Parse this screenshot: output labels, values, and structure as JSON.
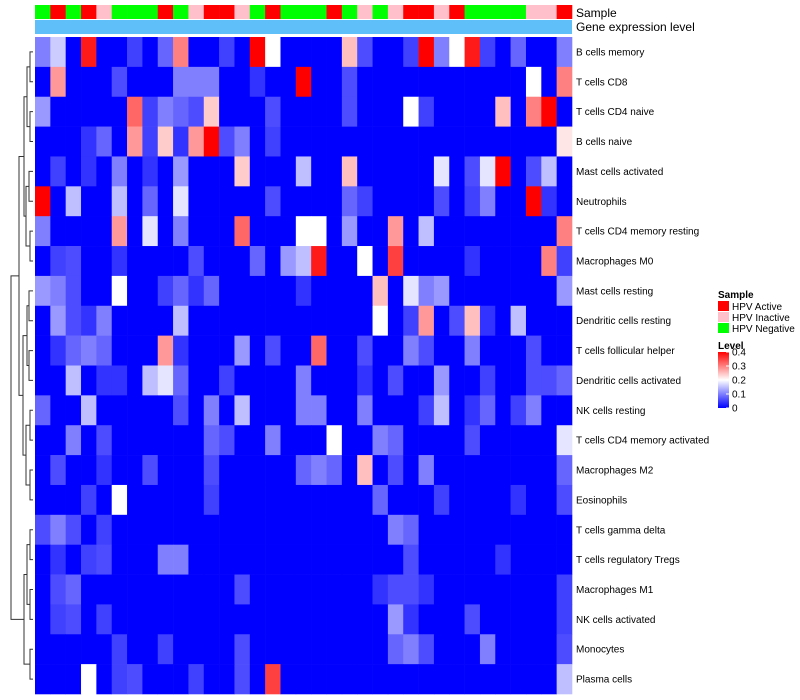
{
  "chart_data": {
    "type": "heatmap",
    "title": "",
    "annotation_labels": [
      "Sample",
      "Gene expression level"
    ],
    "rows": [
      "B cells memory",
      "T cells CD8",
      "T cells CD4 naive",
      "B cells naive",
      "Mast cells activated",
      "Neutrophils",
      "T cells CD4 memory resting",
      "Macrophages M0",
      "Mast cells resting",
      "Dendritic cells resting",
      "T cells follicular helper",
      "Dendritic cells activated",
      "NK cells resting",
      "T cells CD4 memory activated",
      "Macrophages M2",
      "Eosinophils",
      "T cells gamma delta",
      "T cells regulatory  Tregs",
      "Macrophages M1",
      "NK cells activated",
      "Monocytes",
      "Plasma cells"
    ],
    "sample_groups": [
      "HPV Negative",
      "HPV Active",
      "HPV Negative",
      "HPV Active",
      "HPV Inactive",
      "HPV Negative",
      "HPV Negative",
      "HPV Negative",
      "HPV Active",
      "HPV Negative",
      "HPV Inactive",
      "HPV Active",
      "HPV Active",
      "HPV Inactive",
      "HPV Negative",
      "HPV Active",
      "HPV Negative",
      "HPV Negative",
      "HPV Negative",
      "HPV Active",
      "HPV Negative",
      "HPV Inactive",
      "HPV Negative",
      "HPV Inactive",
      "HPV Active",
      "HPV Active",
      "HPV Inactive",
      "HPV Active",
      "HPV Negative",
      "HPV Negative",
      "HPV Negative",
      "HPV Negative",
      "HPV Inactive",
      "HPV Inactive",
      "HPV Active"
    ],
    "values": [
      [
        0.1,
        0.16,
        0.0,
        0.38,
        0.0,
        0.0,
        0.05,
        0.0,
        0.08,
        0.3,
        0.0,
        0.0,
        0.05,
        0.0,
        0.4,
        0.2,
        0.0,
        0.0,
        0.0,
        0.0,
        0.25,
        0.06,
        0.0,
        0.0,
        0.05,
        0.4,
        0.1,
        0.2,
        0.38,
        0.05,
        0.0,
        0.08,
        0.0,
        0.0,
        0.1
      ],
      [
        0.0,
        0.28,
        0.0,
        0.0,
        0.0,
        0.06,
        0.0,
        0.0,
        0.0,
        0.1,
        0.1,
        0.1,
        0.0,
        0.0,
        0.04,
        0.0,
        0.0,
        0.4,
        0.0,
        0.0,
        0.06,
        0.0,
        0.0,
        0.0,
        0.0,
        0.0,
        0.0,
        0.0,
        0.0,
        0.0,
        0.0,
        0.0,
        0.2,
        0.0,
        0.3
      ],
      [
        0.12,
        0.0,
        0.0,
        0.0,
        0.0,
        0.0,
        0.32,
        0.05,
        0.1,
        0.08,
        0.06,
        0.24,
        0.0,
        0.0,
        0.0,
        0.06,
        0.0,
        0.0,
        0.0,
        0.0,
        0.06,
        0.0,
        0.0,
        0.0,
        0.2,
        0.05,
        0.0,
        0.0,
        0.0,
        0.0,
        0.25,
        0.0,
        0.3,
        0.4,
        0.0
      ],
      [
        0.0,
        0.0,
        0.0,
        0.04,
        0.08,
        0.0,
        0.28,
        0.05,
        0.24,
        0.04,
        0.28,
        0.4,
        0.06,
        0.1,
        0.0,
        0.05,
        0.0,
        0.0,
        0.0,
        0.0,
        0.0,
        0.0,
        0.0,
        0.0,
        0.0,
        0.0,
        0.0,
        0.0,
        0.0,
        0.0,
        0.0,
        0.0,
        0.0,
        0.0,
        0.22
      ],
      [
        0.0,
        0.05,
        0.0,
        0.04,
        0.0,
        0.1,
        0.0,
        0.04,
        0.0,
        0.12,
        0.0,
        0.0,
        0.0,
        0.24,
        0.0,
        0.0,
        0.0,
        0.15,
        0.0,
        0.0,
        0.25,
        0.0,
        0.0,
        0.0,
        0.0,
        0.0,
        0.18,
        0.0,
        0.06,
        0.18,
        0.4,
        0.0,
        0.06,
        0.15,
        0.0
      ],
      [
        0.4,
        0.0,
        0.15,
        0.0,
        0.0,
        0.15,
        0.0,
        0.08,
        0.0,
        0.18,
        0.0,
        0.0,
        0.0,
        0.0,
        0.0,
        0.06,
        0.0,
        0.0,
        0.0,
        0.0,
        0.08,
        0.05,
        0.0,
        0.0,
        0.0,
        0.0,
        0.06,
        0.0,
        0.05,
        0.1,
        0.0,
        0.0,
        0.4,
        0.04,
        0.0
      ],
      [
        0.1,
        0.0,
        0.0,
        0.0,
        0.0,
        0.28,
        0.0,
        0.18,
        0.0,
        0.1,
        0.0,
        0.0,
        0.0,
        0.32,
        0.0,
        0.0,
        0.0,
        0.2,
        0.2,
        0.0,
        0.12,
        0.0,
        0.0,
        0.28,
        0.0,
        0.15,
        0.0,
        0.0,
        0.0,
        0.0,
        0.0,
        0.0,
        0.0,
        0.0,
        0.3
      ],
      [
        0.0,
        0.05,
        0.06,
        0.0,
        0.0,
        0.04,
        0.0,
        0.0,
        0.0,
        0.0,
        0.06,
        0.0,
        0.0,
        0.0,
        0.08,
        0.0,
        0.12,
        0.15,
        0.38,
        0.0,
        0.0,
        0.2,
        0.0,
        0.35,
        0.0,
        0.0,
        0.0,
        0.0,
        0.04,
        0.0,
        0.0,
        0.0,
        0.0,
        0.3,
        0.05
      ],
      [
        0.12,
        0.1,
        0.06,
        0.0,
        0.0,
        0.2,
        0.0,
        0.0,
        0.05,
        0.08,
        0.04,
        0.08,
        0.0,
        0.0,
        0.0,
        0.0,
        0.0,
        0.04,
        0.0,
        0.0,
        0.0,
        0.0,
        0.25,
        0.0,
        0.18,
        0.1,
        0.12,
        0.0,
        0.0,
        0.0,
        0.0,
        0.0,
        0.0,
        0.0,
        0.12
      ],
      [
        0.0,
        0.12,
        0.06,
        0.04,
        0.1,
        0.0,
        0.0,
        0.0,
        0.0,
        0.15,
        0.0,
        0.0,
        0.0,
        0.0,
        0.0,
        0.0,
        0.0,
        0.0,
        0.0,
        0.0,
        0.0,
        0.0,
        0.2,
        0.0,
        0.05,
        0.28,
        0.0,
        0.06,
        0.25,
        0.04,
        0.0,
        0.15,
        0.0,
        0.0,
        0.0
      ],
      [
        0.0,
        0.04,
        0.08,
        0.1,
        0.08,
        0.0,
        0.0,
        0.0,
        0.28,
        0.04,
        0.0,
        0.0,
        0.0,
        0.12,
        0.0,
        0.06,
        0.0,
        0.0,
        0.32,
        0.0,
        0.0,
        0.06,
        0.0,
        0.0,
        0.1,
        0.06,
        0.0,
        0.0,
        0.1,
        0.0,
        0.0,
        0.0,
        0.06,
        0.0,
        0.0
      ],
      [
        0.0,
        0.0,
        0.15,
        0.0,
        0.04,
        0.04,
        0.0,
        0.15,
        0.18,
        0.08,
        0.0,
        0.0,
        0.05,
        0.0,
        0.0,
        0.0,
        0.0,
        0.1,
        0.0,
        0.0,
        0.0,
        0.04,
        0.0,
        0.06,
        0.0,
        0.0,
        0.12,
        0.0,
        0.0,
        0.05,
        0.0,
        0.0,
        0.06,
        0.06,
        0.08
      ],
      [
        0.08,
        0.0,
        0.0,
        0.15,
        0.0,
        0.0,
        0.0,
        0.0,
        0.0,
        0.06,
        0.0,
        0.1,
        0.0,
        0.15,
        0.0,
        0.0,
        0.0,
        0.1,
        0.1,
        0.0,
        0.0,
        0.1,
        0.0,
        0.0,
        0.0,
        0.05,
        0.15,
        0.0,
        0.04,
        0.08,
        0.0,
        0.05,
        0.1,
        0.0,
        0.0
      ],
      [
        0.0,
        0.0,
        0.1,
        0.0,
        0.06,
        0.0,
        0.0,
        0.0,
        0.0,
        0.0,
        0.0,
        0.08,
        0.06,
        0.0,
        0.0,
        0.1,
        0.0,
        0.0,
        0.0,
        0.2,
        0.0,
        0.0,
        0.1,
        0.08,
        0.0,
        0.0,
        0.0,
        0.0,
        0.06,
        0.0,
        0.0,
        0.0,
        0.0,
        0.0,
        0.18
      ],
      [
        0.0,
        0.06,
        0.0,
        0.0,
        0.04,
        0.0,
        0.0,
        0.06,
        0.0,
        0.0,
        0.0,
        0.06,
        0.0,
        0.0,
        0.0,
        0.0,
        0.0,
        0.08,
        0.1,
        0.08,
        0.0,
        0.25,
        0.0,
        0.06,
        0.0,
        0.1,
        0.0,
        0.0,
        0.0,
        0.0,
        0.0,
        0.0,
        0.0,
        0.0,
        0.08
      ],
      [
        0.0,
        0.0,
        0.0,
        0.05,
        0.0,
        0.2,
        0.0,
        0.0,
        0.0,
        0.0,
        0.0,
        0.05,
        0.0,
        0.0,
        0.0,
        0.0,
        0.0,
        0.0,
        0.0,
        0.0,
        0.0,
        0.0,
        0.08,
        0.0,
        0.0,
        0.0,
        0.05,
        0.0,
        0.0,
        0.0,
        0.0,
        0.04,
        0.0,
        0.0,
        0.06
      ],
      [
        0.06,
        0.1,
        0.06,
        0.0,
        0.05,
        0.0,
        0.0,
        0.0,
        0.0,
        0.0,
        0.0,
        0.0,
        0.0,
        0.0,
        0.0,
        0.0,
        0.0,
        0.0,
        0.0,
        0.0,
        0.0,
        0.0,
        0.0,
        0.1,
        0.08,
        0.0,
        0.0,
        0.0,
        0.0,
        0.0,
        0.0,
        0.0,
        0.0,
        0.0,
        0.0
      ],
      [
        0.0,
        0.04,
        0.0,
        0.05,
        0.06,
        0.0,
        0.0,
        0.0,
        0.1,
        0.1,
        0.0,
        0.0,
        0.0,
        0.0,
        0.0,
        0.0,
        0.0,
        0.0,
        0.0,
        0.0,
        0.0,
        0.0,
        0.0,
        0.0,
        0.06,
        0.0,
        0.0,
        0.0,
        0.0,
        0.0,
        0.04,
        0.0,
        0.0,
        0.0,
        0.0
      ],
      [
        0.0,
        0.06,
        0.08,
        0.0,
        0.0,
        0.0,
        0.0,
        0.0,
        0.0,
        0.0,
        0.0,
        0.0,
        0.0,
        0.06,
        0.0,
        0.0,
        0.0,
        0.0,
        0.0,
        0.0,
        0.0,
        0.0,
        0.04,
        0.06,
        0.06,
        0.04,
        0.0,
        0.0,
        0.0,
        0.0,
        0.0,
        0.0,
        0.0,
        0.0,
        0.05
      ],
      [
        0.0,
        0.05,
        0.06,
        0.0,
        0.05,
        0.0,
        0.0,
        0.0,
        0.0,
        0.0,
        0.0,
        0.0,
        0.0,
        0.0,
        0.0,
        0.0,
        0.0,
        0.0,
        0.0,
        0.0,
        0.0,
        0.0,
        0.0,
        0.12,
        0.04,
        0.0,
        0.0,
        0.0,
        0.06,
        0.0,
        0.0,
        0.0,
        0.0,
        0.0,
        0.05
      ],
      [
        0.0,
        0.0,
        0.0,
        0.0,
        0.0,
        0.05,
        0.0,
        0.0,
        0.05,
        0.0,
        0.0,
        0.0,
        0.0,
        0.06,
        0.0,
        0.0,
        0.0,
        0.0,
        0.0,
        0.0,
        0.0,
        0.0,
        0.0,
        0.08,
        0.1,
        0.06,
        0.0,
        0.0,
        0.0,
        0.1,
        0.0,
        0.0,
        0.0,
        0.0,
        0.06
      ],
      [
        0.0,
        0.0,
        0.0,
        0.2,
        0.0,
        0.05,
        0.06,
        0.0,
        0.0,
        0.0,
        0.05,
        0.0,
        0.0,
        0.06,
        0.0,
        0.35,
        0.0,
        0.0,
        0.0,
        0.0,
        0.0,
        0.0,
        0.0,
        0.0,
        0.0,
        0.0,
        0.0,
        0.0,
        0.0,
        0.0,
        0.0,
        0.0,
        0.0,
        0.0,
        0.15
      ]
    ],
    "legend_sample": {
      "title": "Sample",
      "items": [
        {
          "label": "HPV Active",
          "color": "#ff0000"
        },
        {
          "label": "HPV Inactive",
          "color": "#ffc0cb"
        },
        {
          "label": "HPV Negative",
          "color": "#00ff00"
        }
      ]
    },
    "legend_level": {
      "title": "Level",
      "ticks": [
        "0.4",
        "0.3",
        "0.2",
        "0.1",
        "0"
      ],
      "range": [
        0,
        0.4
      ],
      "colors": {
        "low": "#0000ff",
        "mid": "#ffffff",
        "high": "#ff0000"
      }
    },
    "gene_bar_color": "#5fbff9"
  }
}
